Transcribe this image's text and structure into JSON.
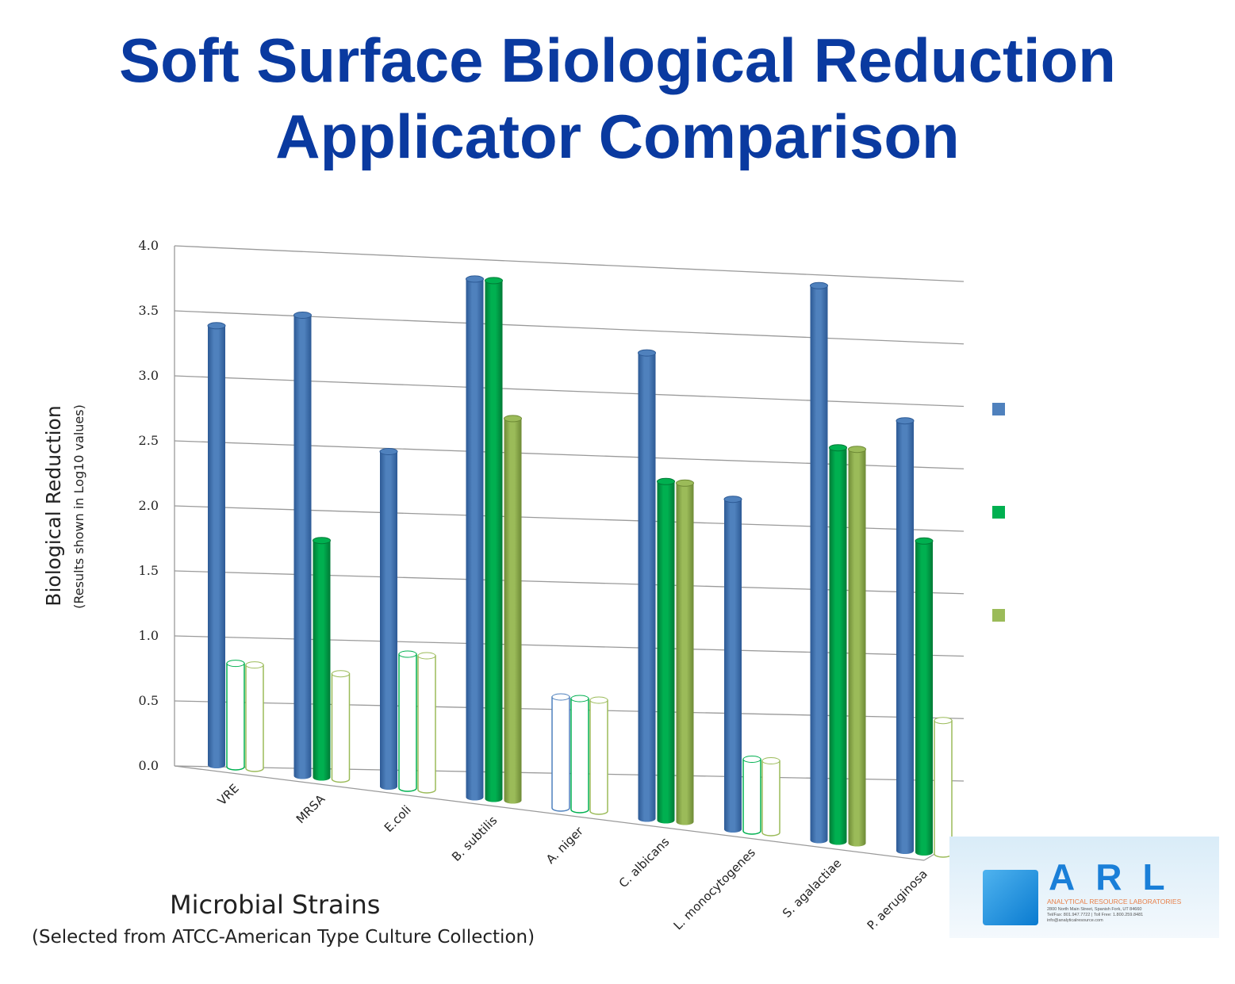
{
  "title_line1": "Soft Surface Biological Reduction",
  "title_line2": "Applicator Comparison",
  "chart_data": {
    "type": "bar",
    "style": "3d-cylinder",
    "title": "Soft Surface Biological Reduction Applicator Comparison",
    "xlabel": "Microbial Strains",
    "xlabel_sub": "(Selected from ATCC-American Type Culture Collection)",
    "ylabel": "Biological Reduction",
    "ylabel_sub": "(Results shown in Log10 values)",
    "ylim": [
      0,
      4.0
    ],
    "yticks": [
      "0.0",
      "0.5",
      "1.0",
      "1.5",
      "2.0",
      "2.5",
      "3.0",
      "3.5",
      "4.0"
    ],
    "grid": true,
    "legend_position": "right",
    "categories": [
      "VRE",
      "MRSA",
      "E.coli",
      "B. subtilis",
      "A. niger",
      "C. albicans",
      "L. monocytogenes",
      "S. agalactiae",
      "P. aeruginosa"
    ],
    "series": [
      {
        "color": "#4f81bd",
        "values": [
          3.4,
          3.5,
          2.5,
          3.8,
          0.8,
          3.3,
          2.3,
          3.8,
          2.9
        ],
        "outlined": [
          false,
          false,
          false,
          false,
          true,
          false,
          false,
          false,
          false
        ]
      },
      {
        "color": "#00b050",
        "values": [
          0.8,
          1.8,
          1.0,
          3.8,
          0.8,
          2.4,
          0.5,
          2.7,
          2.1
        ],
        "outlined": [
          true,
          false,
          true,
          false,
          true,
          false,
          true,
          false,
          false
        ]
      },
      {
        "color": "#9bbb59",
        "values": [
          0.8,
          0.8,
          1.0,
          2.8,
          0.8,
          2.4,
          0.5,
          2.7,
          0.9
        ],
        "outlined": [
          true,
          true,
          true,
          false,
          true,
          false,
          true,
          false,
          true
        ]
      }
    ]
  },
  "logo": {
    "text": "ARL",
    "name": "ANALYTICAL RESOURCE LABORATORIES",
    "address": "2800 North Main Street, Spanish Fork, UT 84660",
    "phone": "Tel/Fax: 801.947.7722 | Toll Free: 1.800.259.8481",
    "email": "info@analyticalresource.com"
  }
}
